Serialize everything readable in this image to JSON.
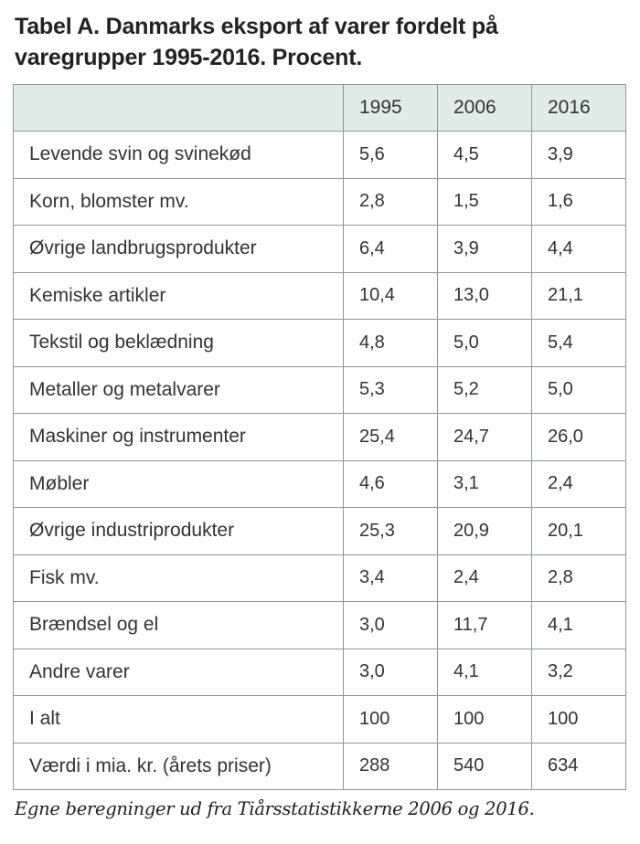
{
  "page": {
    "title_line1": "Tabel A. Danmarks eksport af varer fordelt på",
    "title_line2": "varegrupper 1995-2016. Procent.",
    "source_note": "Egne beregninger ud fra Tiårsstatistikkerne 2006 og 2016."
  },
  "table": {
    "columns": [
      "1995",
      "2006",
      "2016"
    ],
    "rows": [
      {
        "label": "Levende svin og svinekød",
        "values": [
          "5,6",
          "4,5",
          "3,9"
        ]
      },
      {
        "label": "Korn, blomster mv.",
        "values": [
          "2,8",
          "1,5",
          "1,6"
        ]
      },
      {
        "label": "Øvrige landbrugsprodukter",
        "values": [
          "6,4",
          "3,9",
          "4,4"
        ]
      },
      {
        "label": "Kemiske artikler",
        "values": [
          "10,4",
          "13,0",
          "21,1"
        ]
      },
      {
        "label": "Tekstil og beklædning",
        "values": [
          "4,8",
          "5,0",
          "5,4"
        ]
      },
      {
        "label": "Metaller og metalvarer",
        "values": [
          "5,3",
          "5,2",
          "5,0"
        ]
      },
      {
        "label": "Maskiner og instrumenter",
        "values": [
          "25,4",
          "24,7",
          "26,0"
        ]
      },
      {
        "label": "Møbler",
        "values": [
          "4,6",
          "3,1",
          "2,4"
        ]
      },
      {
        "label": "Øvrige industriprodukter",
        "values": [
          "25,3",
          "20,9",
          "20,1"
        ]
      },
      {
        "label": "Fisk mv.",
        "values": [
          "3,4",
          "2,4",
          "2,8"
        ]
      },
      {
        "label": "Brændsel og el",
        "values": [
          "3,0",
          "11,7",
          "4,1"
        ]
      },
      {
        "label": "Andre varer",
        "values": [
          "3,0",
          "4,1",
          "3,2"
        ]
      },
      {
        "label": "I alt",
        "values": [
          "100",
          "100",
          "100"
        ]
      },
      {
        "label": "Værdi i mia. kr. (årets priser)",
        "values": [
          "288",
          "540",
          "634"
        ]
      }
    ]
  },
  "colors": {
    "header_bg": "#e0ece8",
    "border": "#8f9793",
    "title_text": "#222222",
    "body_text": "#333333"
  }
}
